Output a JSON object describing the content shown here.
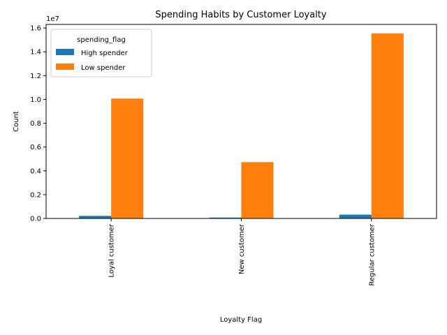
{
  "chart_data": {
    "type": "bar",
    "title": "Spending Habits by Customer Loyalty",
    "xlabel": "Loyalty Flag",
    "ylabel": "Count",
    "y_scale_label": "1e7",
    "categories": [
      "Loyal customer",
      "New customer",
      "Regular customer"
    ],
    "series": [
      {
        "name": "High spender",
        "color": "#1f77b4",
        "values": [
          216000,
          75000,
          320000
        ]
      },
      {
        "name": "Low spender",
        "color": "#ff7f0e",
        "values": [
          10070000,
          4730000,
          15550000
        ]
      }
    ],
    "ylim": [
      0,
      16300000
    ],
    "y_ticks": [
      0,
      2000000,
      4000000,
      6000000,
      8000000,
      10000000,
      12000000,
      14000000,
      16000000
    ],
    "y_tick_labels": [
      "0.0",
      "0.2",
      "0.4",
      "0.6",
      "0.8",
      "1.0",
      "1.2",
      "1.4",
      "1.6"
    ],
    "legend": {
      "title": "spending_flag",
      "position": "upper-left"
    },
    "grid": false
  }
}
